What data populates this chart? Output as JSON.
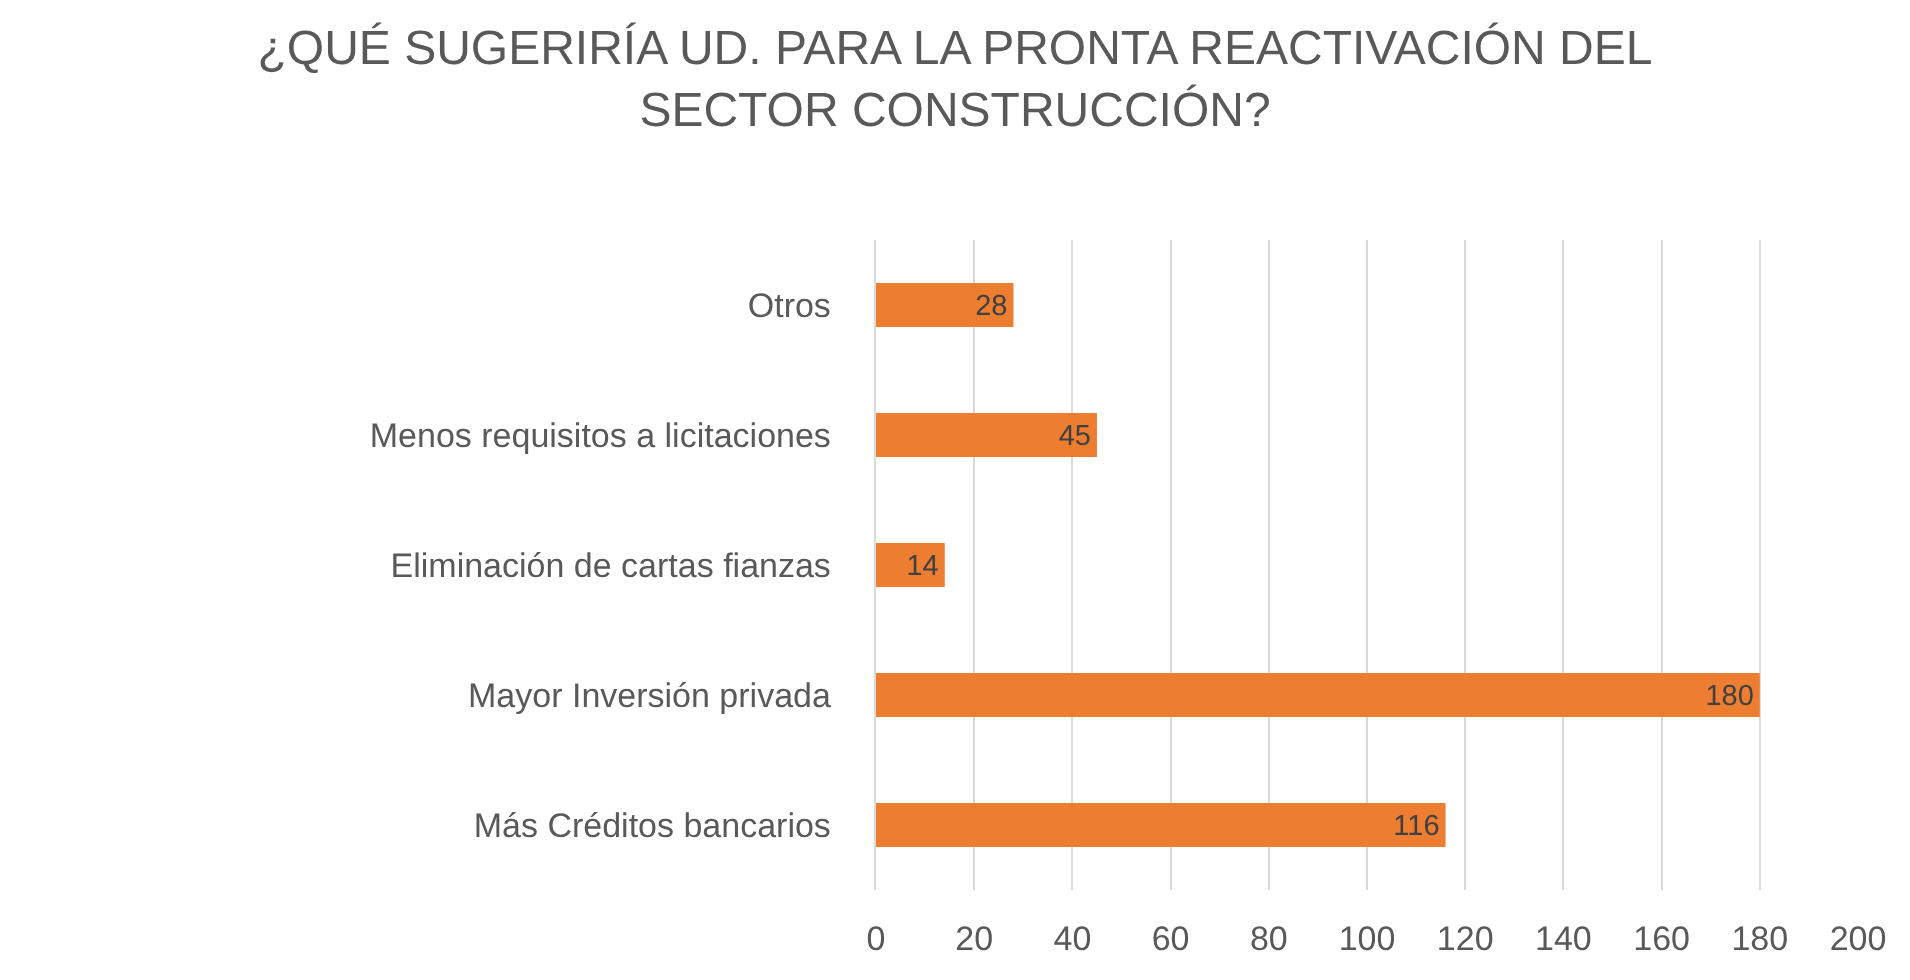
{
  "chart_data": {
    "type": "bar",
    "orientation": "horizontal",
    "title": "¿QUÉ SUGERIRÍA UD. PARA LA PRONTA REACTIVACIÓN DEL SECTOR CONSTRUCCIÓN?",
    "categories": [
      "Otros",
      "Menos requisitos a licitaciones",
      "Eliminación de cartas fianzas",
      "Mayor Inversión privada",
      "Más Créditos bancarios"
    ],
    "values": [
      28,
      45,
      14,
      180,
      116
    ],
    "color": "#ed7d31",
    "xlim": [
      0,
      200
    ],
    "xticks": [
      0,
      20,
      40,
      60,
      80,
      100,
      120,
      140,
      160,
      180,
      200
    ],
    "grid": "x",
    "data_labels": true
  }
}
